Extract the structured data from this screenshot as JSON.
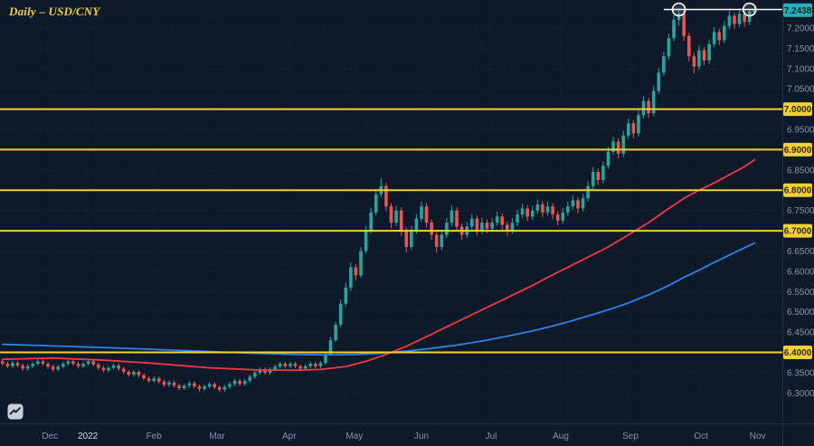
{
  "header": {
    "title": "Daily – USD/CNY"
  },
  "colors": {
    "background": "#0e1a2a",
    "up": "#26a69a",
    "down": "#ef5350",
    "ma_fast": "#f23645",
    "ma_slow": "#2a82e4",
    "level": "#f5d032",
    "level_text": "#332b00",
    "last_badge": "#27b0ba",
    "last_badge_text": "#06282d",
    "axis_text": "#8494a9",
    "axis_text_bright": "#d5dce8",
    "annotation": "#ffffff",
    "title": "#f7cf3a",
    "separator": "#242e3e",
    "grid": "rgba(140,160,185,0.13)",
    "vgrid": "rgba(140,160,185,0.07)"
  },
  "chart_data": {
    "type": "candlestick",
    "symbol": "USD/CNY",
    "timeframe": "Daily",
    "title": "Daily – USD/CNY",
    "ylim": [
      6.225,
      7.269
    ],
    "slots": 155,
    "grid": true,
    "last_price": {
      "value": 7.2438,
      "label": "7.2438"
    },
    "y_ticks": [
      {
        "v": 7.2,
        "label": "7.2000"
      },
      {
        "v": 7.15,
        "label": "7.1500"
      },
      {
        "v": 7.1,
        "label": "7.1000"
      },
      {
        "v": 7.05,
        "label": "7.0500"
      },
      {
        "v": 7.0,
        "label": "7.0000"
      },
      {
        "v": 6.95,
        "label": "6.9500"
      },
      {
        "v": 6.9,
        "label": "6.9000"
      },
      {
        "v": 6.85,
        "label": "6.8500"
      },
      {
        "v": 6.8,
        "label": "6.8000"
      },
      {
        "v": 6.75,
        "label": "6.7500"
      },
      {
        "v": 6.7,
        "label": "6.7000"
      },
      {
        "v": 6.65,
        "label": "6.6500"
      },
      {
        "v": 6.6,
        "label": "6.6000"
      },
      {
        "v": 6.55,
        "label": "6.5500"
      },
      {
        "v": 6.5,
        "label": "6.5000"
      },
      {
        "v": 6.45,
        "label": "6.4500"
      },
      {
        "v": 6.4,
        "label": "6.4000"
      },
      {
        "v": 6.35,
        "label": "6.3500"
      },
      {
        "v": 6.3,
        "label": "6.3000"
      }
    ],
    "x_ticks": [
      {
        "label": "Dec",
        "i": 9.4
      },
      {
        "label": "2022",
        "i": 16.9,
        "emph": true
      },
      {
        "label": "Feb",
        "i": 30
      },
      {
        "label": "Mar",
        "i": 42.5
      },
      {
        "label": "Apr",
        "i": 56.8
      },
      {
        "label": "May",
        "i": 69.7
      },
      {
        "label": "Jun",
        "i": 83
      },
      {
        "label": "Jul",
        "i": 96.8
      },
      {
        "label": "Aug",
        "i": 110.6
      },
      {
        "label": "Sep",
        "i": 124.4
      },
      {
        "label": "Oct",
        "i": 138.4
      },
      {
        "label": "Nov",
        "i": 149.6
      }
    ],
    "h_levels": [
      {
        "price": 7.0,
        "label": "7.0000"
      },
      {
        "price": 6.9,
        "label": "6.9000"
      },
      {
        "price": 6.8,
        "label": "6.8000"
      },
      {
        "price": 6.7,
        "label": "6.7000"
      },
      {
        "price": 6.4,
        "label": "6.4000"
      }
    ],
    "candles": [
      [
        6.378,
        6.383,
        6.367,
        6.372
      ],
      [
        6.372,
        6.377,
        6.361,
        6.366
      ],
      [
        6.366,
        6.379,
        6.361,
        6.374
      ],
      [
        6.374,
        6.379,
        6.363,
        6.368
      ],
      [
        6.368,
        6.373,
        6.355,
        6.36
      ],
      [
        6.36,
        6.371,
        6.355,
        6.366
      ],
      [
        6.366,
        6.377,
        6.361,
        6.372
      ],
      [
        6.372,
        6.383,
        6.367,
        6.378
      ],
      [
        6.378,
        6.383,
        6.367,
        6.372
      ],
      [
        6.372,
        6.377,
        6.36,
        6.365
      ],
      [
        6.365,
        6.37,
        6.353,
        6.358
      ],
      [
        6.358,
        6.37,
        6.353,
        6.365
      ],
      [
        6.365,
        6.377,
        6.36,
        6.372
      ],
      [
        6.372,
        6.383,
        6.367,
        6.378
      ],
      [
        6.378,
        6.383,
        6.367,
        6.372
      ],
      [
        6.372,
        6.377,
        6.361,
        6.366
      ],
      [
        6.366,
        6.377,
        6.361,
        6.372
      ],
      [
        6.372,
        6.383,
        6.367,
        6.378
      ],
      [
        6.378,
        6.383,
        6.365,
        6.37
      ],
      [
        6.37,
        6.375,
        6.357,
        6.362
      ],
      [
        6.362,
        6.367,
        6.351,
        6.356
      ],
      [
        6.356,
        6.367,
        6.351,
        6.362
      ],
      [
        6.362,
        6.373,
        6.357,
        6.368
      ],
      [
        6.368,
        6.373,
        6.355,
        6.36
      ],
      [
        6.36,
        6.365,
        6.347,
        6.352
      ],
      [
        6.352,
        6.357,
        6.34,
        6.345
      ],
      [
        6.345,
        6.357,
        6.34,
        6.352
      ],
      [
        6.352,
        6.357,
        6.339,
        6.344
      ],
      [
        6.344,
        6.349,
        6.331,
        6.336
      ],
      [
        6.336,
        6.341,
        6.325,
        6.33
      ],
      [
        6.33,
        6.341,
        6.325,
        6.336
      ],
      [
        6.336,
        6.341,
        6.323,
        6.328
      ],
      [
        6.328,
        6.333,
        6.315,
        6.32
      ],
      [
        6.32,
        6.331,
        6.315,
        6.326
      ],
      [
        6.326,
        6.331,
        6.313,
        6.318
      ],
      [
        6.318,
        6.323,
        6.307,
        6.312
      ],
      [
        6.312,
        6.323,
        6.307,
        6.318
      ],
      [
        6.318,
        6.329,
        6.313,
        6.324
      ],
      [
        6.324,
        6.329,
        6.311,
        6.316
      ],
      [
        6.316,
        6.321,
        6.304,
        6.31
      ],
      [
        6.31,
        6.321,
        6.305,
        6.316
      ],
      [
        6.316,
        6.327,
        6.311,
        6.322
      ],
      [
        6.322,
        6.327,
        6.309,
        6.314
      ],
      [
        6.314,
        6.319,
        6.302,
        6.308
      ],
      [
        6.308,
        6.32,
        6.303,
        6.315
      ],
      [
        6.315,
        6.327,
        6.31,
        6.322
      ],
      [
        6.322,
        6.335,
        6.317,
        6.33
      ],
      [
        6.33,
        6.335,
        6.317,
        6.322
      ],
      [
        6.322,
        6.335,
        6.317,
        6.33
      ],
      [
        6.33,
        6.345,
        6.325,
        6.34
      ],
      [
        6.34,
        6.355,
        6.335,
        6.35
      ],
      [
        6.35,
        6.363,
        6.345,
        6.358
      ],
      [
        6.358,
        6.363,
        6.345,
        6.35
      ],
      [
        6.35,
        6.363,
        6.345,
        6.358
      ],
      [
        6.358,
        6.37,
        6.353,
        6.365
      ],
      [
        6.365,
        6.377,
        6.36,
        6.372
      ],
      [
        6.372,
        6.377,
        6.361,
        6.366
      ],
      [
        6.366,
        6.377,
        6.361,
        6.372
      ],
      [
        6.372,
        6.377,
        6.361,
        6.366
      ],
      [
        6.366,
        6.371,
        6.355,
        6.36
      ],
      [
        6.36,
        6.371,
        6.355,
        6.366
      ],
      [
        6.366,
        6.377,
        6.361,
        6.372
      ],
      [
        6.372,
        6.377,
        6.361,
        6.366
      ],
      [
        6.366,
        6.379,
        6.361,
        6.374
      ],
      [
        6.374,
        6.402,
        6.37,
        6.396
      ],
      [
        6.396,
        6.438,
        6.392,
        6.43
      ],
      [
        6.43,
        6.476,
        6.426,
        6.468
      ],
      [
        6.468,
        6.53,
        6.462,
        6.52
      ],
      [
        6.52,
        6.572,
        6.512,
        6.56
      ],
      [
        6.56,
        6.622,
        6.552,
        6.61
      ],
      [
        6.61,
        6.618,
        6.578,
        6.59
      ],
      [
        6.59,
        6.66,
        6.584,
        6.65
      ],
      [
        6.65,
        6.712,
        6.644,
        6.7
      ],
      [
        6.7,
        6.757,
        6.693,
        6.745
      ],
      [
        6.745,
        6.802,
        6.738,
        6.79
      ],
      [
        6.79,
        6.83,
        6.782,
        6.81
      ],
      [
        6.81,
        6.818,
        6.748,
        6.76
      ],
      [
        6.76,
        6.768,
        6.706,
        6.72
      ],
      [
        6.72,
        6.762,
        6.712,
        6.75
      ],
      [
        6.75,
        6.758,
        6.688,
        6.7
      ],
      [
        6.7,
        6.708,
        6.646,
        6.66
      ],
      [
        6.66,
        6.712,
        6.652,
        6.7
      ],
      [
        6.7,
        6.742,
        6.692,
        6.73
      ],
      [
        6.73,
        6.772,
        6.722,
        6.76
      ],
      [
        6.76,
        6.768,
        6.708,
        6.72
      ],
      [
        6.72,
        6.728,
        6.678,
        6.69
      ],
      [
        6.69,
        6.698,
        6.646,
        6.66
      ],
      [
        6.66,
        6.702,
        6.652,
        6.69
      ],
      [
        6.69,
        6.732,
        6.682,
        6.72
      ],
      [
        6.72,
        6.762,
        6.712,
        6.75
      ],
      [
        6.75,
        6.758,
        6.698,
        6.71
      ],
      [
        6.71,
        6.718,
        6.678,
        6.69
      ],
      [
        6.69,
        6.722,
        6.682,
        6.71
      ],
      [
        6.71,
        6.742,
        6.702,
        6.73
      ],
      [
        6.73,
        6.738,
        6.688,
        6.7
      ],
      [
        6.7,
        6.732,
        6.692,
        6.72
      ],
      [
        6.72,
        6.728,
        6.694,
        6.705
      ],
      [
        6.705,
        6.732,
        6.697,
        6.72
      ],
      [
        6.72,
        6.747,
        6.712,
        6.735
      ],
      [
        6.735,
        6.743,
        6.703,
        6.715
      ],
      [
        6.715,
        6.723,
        6.688,
        6.7
      ],
      [
        6.7,
        6.732,
        6.692,
        6.72
      ],
      [
        6.72,
        6.752,
        6.712,
        6.74
      ],
      [
        6.74,
        6.767,
        6.732,
        6.755
      ],
      [
        6.755,
        6.763,
        6.723,
        6.735
      ],
      [
        6.735,
        6.762,
        6.727,
        6.75
      ],
      [
        6.75,
        6.777,
        6.742,
        6.765
      ],
      [
        6.765,
        6.773,
        6.733,
        6.745
      ],
      [
        6.745,
        6.772,
        6.737,
        6.76
      ],
      [
        6.76,
        6.768,
        6.728,
        6.74
      ],
      [
        6.74,
        6.748,
        6.713,
        6.725
      ],
      [
        6.725,
        6.757,
        6.717,
        6.745
      ],
      [
        6.745,
        6.772,
        6.737,
        6.76
      ],
      [
        6.76,
        6.787,
        6.752,
        6.775
      ],
      [
        6.775,
        6.783,
        6.743,
        6.755
      ],
      [
        6.755,
        6.792,
        6.747,
        6.78
      ],
      [
        6.78,
        6.822,
        6.772,
        6.81
      ],
      [
        6.81,
        6.857,
        6.802,
        6.845
      ],
      [
        6.845,
        6.853,
        6.813,
        6.825
      ],
      [
        6.825,
        6.872,
        6.817,
        6.86
      ],
      [
        6.86,
        6.907,
        6.852,
        6.895
      ],
      [
        6.895,
        6.932,
        6.887,
        6.92
      ],
      [
        6.92,
        6.928,
        6.878,
        6.89
      ],
      [
        6.89,
        6.947,
        6.882,
        6.935
      ],
      [
        6.935,
        6.977,
        6.927,
        6.965
      ],
      [
        6.965,
        6.973,
        6.928,
        6.94
      ],
      [
        6.94,
        6.997,
        6.932,
        6.985
      ],
      [
        6.985,
        7.032,
        6.977,
        7.02
      ],
      [
        7.02,
        7.028,
        6.978,
        6.99
      ],
      [
        6.99,
        7.057,
        6.982,
        7.045
      ],
      [
        7.045,
        7.102,
        7.037,
        7.09
      ],
      [
        7.09,
        7.142,
        7.082,
        7.13
      ],
      [
        7.13,
        7.187,
        7.122,
        7.175
      ],
      [
        7.175,
        7.232,
        7.167,
        7.22
      ],
      [
        7.22,
        7.248,
        7.205,
        7.235
      ],
      [
        7.235,
        7.243,
        7.168,
        7.18
      ],
      [
        7.18,
        7.188,
        7.118,
        7.13
      ],
      [
        7.13,
        7.138,
        7.088,
        7.105
      ],
      [
        7.105,
        7.157,
        7.097,
        7.145
      ],
      [
        7.145,
        7.153,
        7.108,
        7.12
      ],
      [
        7.12,
        7.172,
        7.112,
        7.16
      ],
      [
        7.16,
        7.202,
        7.152,
        7.19
      ],
      [
        7.19,
        7.198,
        7.158,
        7.17
      ],
      [
        7.17,
        7.217,
        7.162,
        7.205
      ],
      [
        7.205,
        7.242,
        7.197,
        7.23
      ],
      [
        7.23,
        7.238,
        7.198,
        7.21
      ],
      [
        7.21,
        7.247,
        7.202,
        7.235
      ],
      [
        7.235,
        7.243,
        7.203,
        7.215
      ],
      [
        7.215,
        7.246,
        7.207,
        7.24
      ],
      [
        7.24,
        7.25,
        7.232,
        7.2438
      ]
    ],
    "ma_fast_red": [
      [
        0,
        6.383
      ],
      [
        10,
        6.386
      ],
      [
        20,
        6.381
      ],
      [
        29,
        6.374
      ],
      [
        41,
        6.362
      ],
      [
        50,
        6.357
      ],
      [
        58,
        6.356
      ],
      [
        63,
        6.358
      ],
      [
        68,
        6.365
      ],
      [
        72,
        6.378
      ],
      [
        76,
        6.395
      ],
      [
        80,
        6.415
      ],
      [
        85,
        6.445
      ],
      [
        90,
        6.475
      ],
      [
        95,
        6.505
      ],
      [
        100,
        6.535
      ],
      [
        105,
        6.565
      ],
      [
        108,
        6.585
      ],
      [
        112,
        6.61
      ],
      [
        116,
        6.635
      ],
      [
        120,
        6.66
      ],
      [
        124,
        6.69
      ],
      [
        128,
        6.72
      ],
      [
        132,
        6.755
      ],
      [
        135,
        6.78
      ],
      [
        138,
        6.8
      ],
      [
        141,
        6.818
      ],
      [
        144,
        6.838
      ],
      [
        147,
        6.858
      ],
      [
        149,
        6.875
      ]
    ],
    "ma_slow_blue": [
      [
        0,
        6.42
      ],
      [
        10,
        6.416
      ],
      [
        20,
        6.412
      ],
      [
        29,
        6.408
      ],
      [
        41,
        6.402
      ],
      [
        50,
        6.398
      ],
      [
        58,
        6.395
      ],
      [
        65,
        6.394
      ],
      [
        70,
        6.395
      ],
      [
        75,
        6.398
      ],
      [
        80,
        6.403
      ],
      [
        85,
        6.41
      ],
      [
        90,
        6.418
      ],
      [
        95,
        6.428
      ],
      [
        100,
        6.44
      ],
      [
        105,
        6.453
      ],
      [
        108,
        6.462
      ],
      [
        112,
        6.475
      ],
      [
        116,
        6.49
      ],
      [
        120,
        6.505
      ],
      [
        124,
        6.522
      ],
      [
        128,
        6.542
      ],
      [
        132,
        6.565
      ],
      [
        135,
        6.585
      ],
      [
        138,
        6.603
      ],
      [
        141,
        6.622
      ],
      [
        144,
        6.64
      ],
      [
        147,
        6.658
      ],
      [
        149,
        6.67
      ]
    ],
    "annotations": {
      "double_top_line": {
        "price": 7.2455,
        "i1": 131,
        "i2": 154.5
      },
      "circles": [
        {
          "i": 134,
          "price": 7.2455
        },
        {
          "i": 148,
          "price": 7.2455
        }
      ]
    }
  }
}
